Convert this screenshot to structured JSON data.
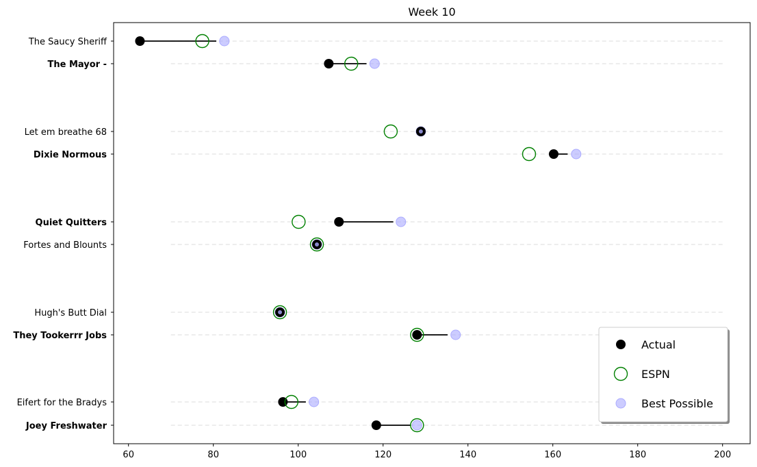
{
  "chart_data": {
    "type": "scatter",
    "title": "Week 10",
    "xlabel": "",
    "ylabel": "",
    "xlim": [
      56.5,
      206.5
    ],
    "xticks": [
      60,
      80,
      100,
      120,
      140,
      160,
      180,
      200
    ],
    "grid": "dashed horizontal guide per team",
    "guide_range": [
      70,
      200
    ],
    "legend_placement": "lower-right",
    "series": [
      {
        "name": "Actual",
        "marker": "filled-circle",
        "color": "#000000"
      },
      {
        "name": "ESPN",
        "marker": "hollow-circle",
        "color": "#008000"
      },
      {
        "name": "Best Possible",
        "marker": "filled-circle",
        "color": "#aaaaff"
      }
    ],
    "teams": [
      {
        "name": "The Saucy Sheriff",
        "bold": false,
        "actual": 62.7,
        "espn": 77.4,
        "best": 82.6,
        "range_end": 80.7
      },
      {
        "name": "The Mayor -",
        "bold": true,
        "actual": 107.2,
        "espn": 112.5,
        "best": 118.0,
        "range_end": 116.1
      },
      {
        "name": "Let em breathe 68",
        "bold": false,
        "actual": 128.9,
        "espn": 121.8,
        "best": 128.9,
        "range_end": 128.9
      },
      {
        "name": "Dixie Normous",
        "bold": true,
        "actual": 160.2,
        "espn": 154.4,
        "best": 165.5,
        "range_end": 163.5
      },
      {
        "name": "Quiet Quitters",
        "bold": true,
        "actual": 109.6,
        "espn": 100.1,
        "best": 124.2,
        "range_end": 122.4
      },
      {
        "name": "Fortes and Blounts",
        "bold": false,
        "actual": 104.4,
        "espn": 104.4,
        "best": 104.4,
        "range_end": 104.4
      },
      {
        "name": "Hugh's  Butt Dial",
        "bold": false,
        "actual": 95.7,
        "espn": 95.7,
        "best": 95.7,
        "range_end": 95.7
      },
      {
        "name": "They Tookerrr Jobs",
        "bold": true,
        "actual": 128.0,
        "espn": 128.0,
        "best": 137.1,
        "range_end": 135.2
      },
      {
        "name": "Eifert  for the Bradys",
        "bold": false,
        "actual": 96.4,
        "espn": 98.4,
        "best": 103.7,
        "range_end": 101.8
      },
      {
        "name": "Joey Freshwater",
        "bold": true,
        "actual": 118.4,
        "espn": 128.0,
        "best": 128.0,
        "range_end": 126.6
      }
    ]
  }
}
